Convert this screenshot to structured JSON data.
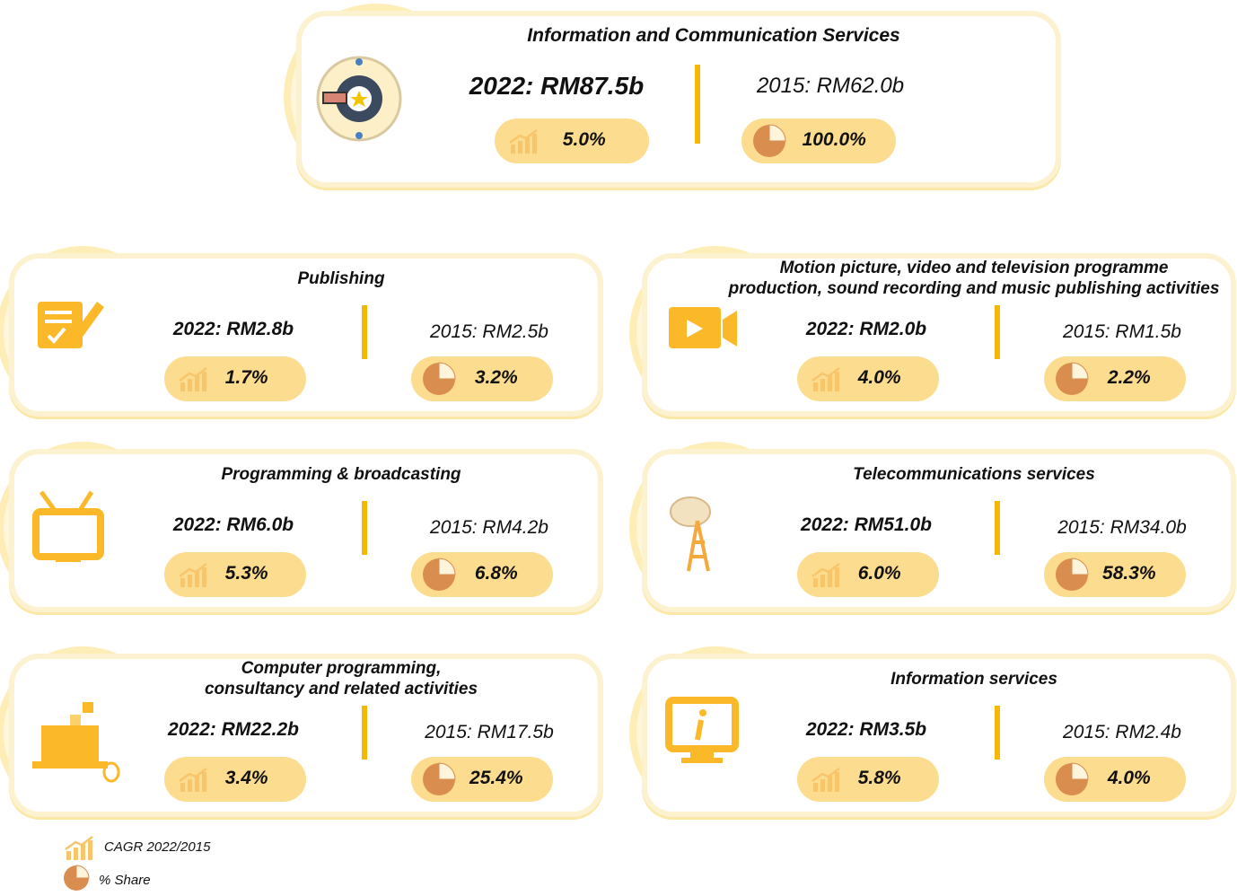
{
  "main": {
    "title": [
      "Information and Communication Services"
    ],
    "value_2022": "2022: RM87.5b",
    "value_2015": "2015: RM62.0b",
    "cagr": "5.0%",
    "share": "100.0%"
  },
  "sectors": [
    {
      "title": [
        "Publishing"
      ],
      "value_2022": "2022: RM2.8b",
      "value_2015": "2015: RM2.5b",
      "cagr": "1.7%",
      "share": "3.2%"
    },
    {
      "title": [
        "Motion picture, video and television programme",
        "production, sound recording and music publishing activities"
      ],
      "value_2022": "2022: RM2.0b",
      "value_2015": "2015: RM1.5b",
      "cagr": "4.0%",
      "share": "2.2%"
    },
    {
      "title": [
        "Programming & broadcasting"
      ],
      "value_2022": "2022: RM6.0b",
      "value_2015": "2015: RM4.2b",
      "cagr": "5.3%",
      "share": "6.8%"
    },
    {
      "title": [
        "Telecommunications services"
      ],
      "value_2022": "2022: RM51.0b",
      "value_2015": "2015: RM34.0b",
      "cagr": "6.0%",
      "share": "58.3%"
    },
    {
      "title": [
        "Computer programming,",
        "consultancy and related activities"
      ],
      "value_2022": "2022: RM22.2b",
      "value_2015": "2015: RM17.5b",
      "cagr": "3.4%",
      "share": "25.4%"
    },
    {
      "title": [
        "Information services"
      ],
      "value_2022": "2022: RM3.5b",
      "value_2015": "2015: RM2.4b",
      "cagr": "5.8%",
      "share": "4.0%"
    }
  ],
  "legend": {
    "cagr": "CAGR 2022/2015",
    "share": "% Share"
  }
}
